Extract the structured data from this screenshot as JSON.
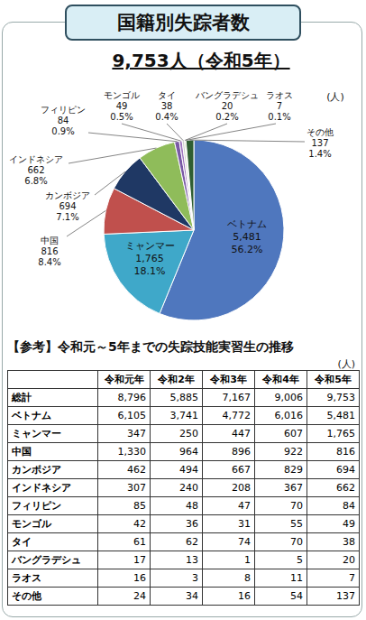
{
  "title": "国籍別失踪者数",
  "subtitle": "9,753人（令和5年）",
  "chart_data": {
    "type": "pie",
    "unit": "(人)",
    "data_labels": true,
    "categories": [
      "ベトナム",
      "ミャンマー",
      "中国",
      "カンボジア",
      "インドネシア",
      "フィリピン",
      "モンゴル",
      "タイ",
      "バングラデシュ",
      "ラオス",
      "その他"
    ],
    "values": [
      5481,
      1765,
      816,
      694,
      662,
      84,
      49,
      38,
      20,
      7,
      137
    ],
    "value_labels": [
      "5,481",
      "1,765",
      "816",
      "694",
      "662",
      "84",
      "49",
      "38",
      "20",
      "7",
      "137"
    ],
    "percent": [
      56.2,
      18.1,
      8.4,
      7.1,
      6.8,
      0.9,
      0.5,
      0.4,
      0.2,
      0.1,
      1.4
    ],
    "percent_labels": [
      "56.2%",
      "18.1%",
      "8.4%",
      "7.1%",
      "6.8%",
      "0.9%",
      "0.5%",
      "0.4%",
      "0.2%",
      "0.1%",
      "1.4%"
    ],
    "colors": [
      "#4f77be",
      "#3fa8c9",
      "#c0504d",
      "#1f3864",
      "#8fbc5a",
      "#7a5aa6",
      "#a077c0",
      "#d0d0d0",
      "#9bbb59",
      "#a5a5a5",
      "#2f5e32"
    ]
  },
  "table": {
    "title": "【参考】令和元～5年までの失踪技能実習生の推移",
    "unit": "(人)",
    "header": [
      "令和元年",
      "令和2年",
      "令和3年",
      "令和4年",
      "令和5年"
    ],
    "rows": [
      [
        "総計",
        "8,796",
        "5,885",
        "7,167",
        "9,006",
        "9,753"
      ],
      [
        "ベトナム",
        "6,105",
        "3,741",
        "4,772",
        "6,016",
        "5,481"
      ],
      [
        "ミャンマー",
        "347",
        "250",
        "447",
        "607",
        "1,765"
      ],
      [
        "中国",
        "1,330",
        "964",
        "896",
        "922",
        "816"
      ],
      [
        "カンボジア",
        "462",
        "494",
        "667",
        "829",
        "694"
      ],
      [
        "インドネシア",
        "307",
        "240",
        "208",
        "367",
        "662"
      ],
      [
        "フィリピン",
        "85",
        "48",
        "47",
        "70",
        "84"
      ],
      [
        "モンゴル",
        "42",
        "36",
        "31",
        "55",
        "49"
      ],
      [
        "タイ",
        "61",
        "62",
        "74",
        "70",
        "38"
      ],
      [
        "バングラデシュ",
        "17",
        "13",
        "1",
        "5",
        "20"
      ],
      [
        "ラオス",
        "16",
        "3",
        "8",
        "11",
        "7"
      ],
      [
        "その他",
        "24",
        "34",
        "16",
        "54",
        "137"
      ]
    ]
  }
}
